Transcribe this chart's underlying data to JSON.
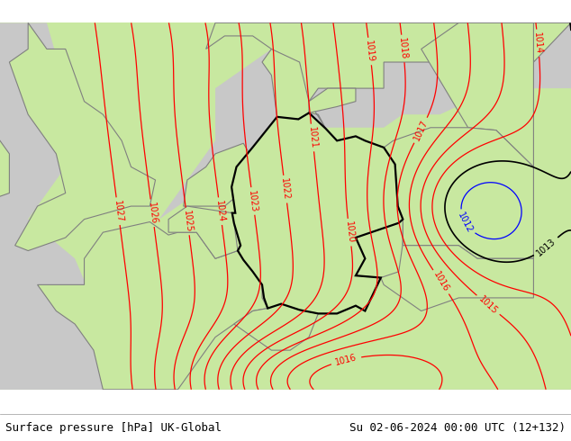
{
  "title_left": "Surface pressure [hPa] UK-Global",
  "title_right": "Su 02-06-2024 00:00 UTC (12+132)",
  "title_fontsize": 9,
  "title_color": "#000000",
  "land_color": "#c8e8a0",
  "sea_color": "#c8c8c8",
  "fig_width": 6.34,
  "fig_height": 4.9,
  "dpi": 100,
  "footer_bg_color": "#ffffff",
  "red_color": "#ff0000",
  "blue_color": "#0000ff",
  "black_color": "#000000",
  "germany_border_color": "#000000",
  "neighbor_border_color": "#808080",
  "label_fontsize": 7,
  "isobar_linewidth": 0.9,
  "germany_linewidth": 1.6,
  "neighbor_linewidth": 0.8
}
